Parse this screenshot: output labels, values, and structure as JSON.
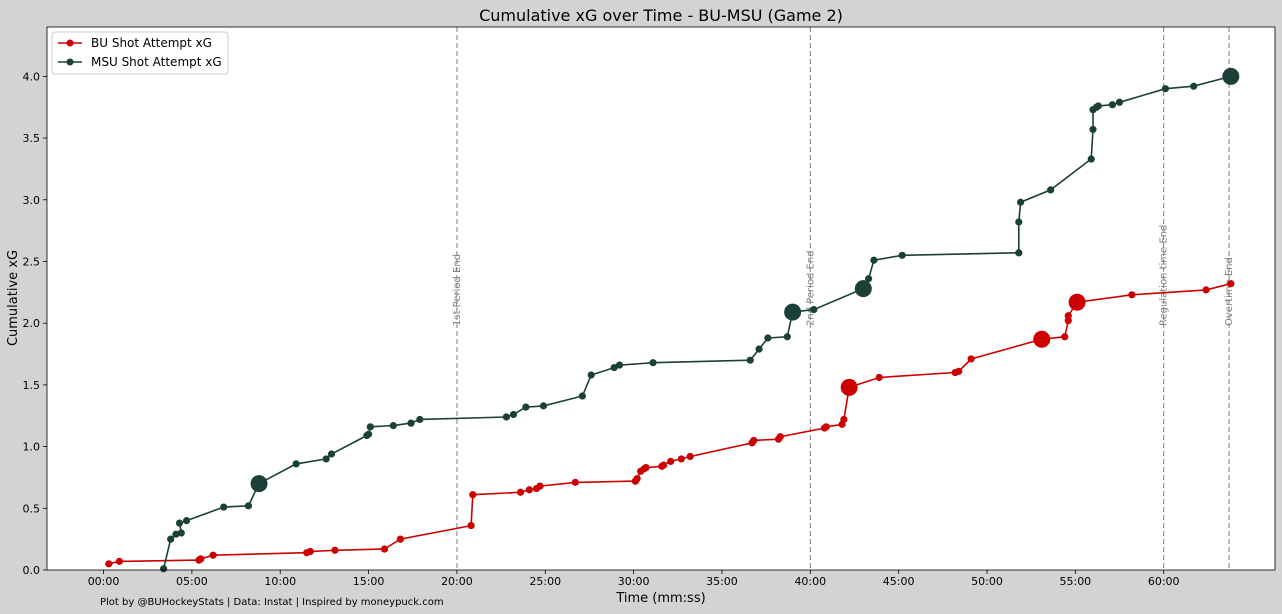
{
  "chart_data": {
    "type": "line",
    "title": "Cumulative xG over Time - BU-MSU (Game 2)",
    "xlabel": "Time (mm:ss)",
    "ylabel": "Cumulative xG",
    "footer": "Plot by @BUHockeyStats | Data: Instat | Inspired by moneypuck.com",
    "xlim": [
      -3.2,
      66.3
    ],
    "ylim": [
      0,
      4.4
    ],
    "x_ticks": [
      0,
      5,
      10,
      15,
      20,
      25,
      30,
      35,
      40,
      45,
      50,
      55,
      60
    ],
    "x_tick_labels": [
      "00:00",
      "05:00",
      "10:00",
      "15:00",
      "20:00",
      "25:00",
      "30:00",
      "35:00",
      "40:00",
      "45:00",
      "50:00",
      "55:00",
      "60:00"
    ],
    "y_ticks": [
      0,
      0.5,
      1.0,
      1.5,
      2.0,
      2.5,
      3.0,
      3.5,
      4.0
    ],
    "y_tick_labels": [
      "0.0",
      "0.5",
      "1.0",
      "1.5",
      "2.0",
      "2.5",
      "3.0",
      "3.5",
      "4.0"
    ],
    "grid": false,
    "legend_position": "top-left",
    "vlines": [
      {
        "x": 20,
        "label": "1st Period End"
      },
      {
        "x": 40,
        "label": "2nd Period End"
      },
      {
        "x": 60,
        "label": "Regulation time End"
      },
      {
        "x": 63.7,
        "label": "Overtime End"
      }
    ],
    "series": [
      {
        "name": "BU Shot Attempt xG",
        "color": "#cc0000",
        "points": [
          [
            0.3,
            0.05
          ],
          [
            0.9,
            0.07
          ],
          [
            5.4,
            0.08
          ],
          [
            5.5,
            0.09
          ],
          [
            6.2,
            0.12
          ],
          [
            11.5,
            0.14
          ],
          [
            11.7,
            0.15
          ],
          [
            13.1,
            0.16
          ],
          [
            15.9,
            0.17
          ],
          [
            16.8,
            0.25
          ],
          [
            20.8,
            0.36
          ],
          [
            20.9,
            0.61
          ],
          [
            23.6,
            0.63
          ],
          [
            24.1,
            0.65
          ],
          [
            24.5,
            0.66
          ],
          [
            24.7,
            0.68
          ],
          [
            26.7,
            0.71
          ],
          [
            30.1,
            0.72
          ],
          [
            30.2,
            0.74
          ],
          [
            30.4,
            0.8
          ],
          [
            30.6,
            0.82
          ],
          [
            30.7,
            0.83
          ],
          [
            31.6,
            0.84
          ],
          [
            31.7,
            0.85
          ],
          [
            32.1,
            0.88
          ],
          [
            32.7,
            0.9
          ],
          [
            33.2,
            0.92
          ],
          [
            36.7,
            1.03
          ],
          [
            36.8,
            1.05
          ],
          [
            38.2,
            1.06
          ],
          [
            38.3,
            1.08
          ],
          [
            40.8,
            1.15
          ],
          [
            40.9,
            1.16
          ],
          [
            41.8,
            1.18
          ],
          [
            41.9,
            1.22
          ],
          [
            42.2,
            1.48
          ],
          [
            43.9,
            1.56
          ],
          [
            48.2,
            1.6
          ],
          [
            48.4,
            1.61
          ],
          [
            49.1,
            1.71
          ],
          [
            53.1,
            1.87
          ],
          [
            54.4,
            1.89
          ],
          [
            54.6,
            2.02
          ],
          [
            54.6,
            2.06
          ],
          [
            55.1,
            2.17
          ],
          [
            58.2,
            2.23
          ],
          [
            62.4,
            2.27
          ],
          [
            63.8,
            2.32
          ]
        ],
        "large_points": [
          [
            42.2,
            1.48
          ],
          [
            53.1,
            1.87
          ],
          [
            55.1,
            2.17
          ]
        ]
      },
      {
        "name": "MSU Shot Attempt xG",
        "color": "#1b4038",
        "points": [
          [
            3.4,
            0.01
          ],
          [
            3.8,
            0.25
          ],
          [
            4.1,
            0.29
          ],
          [
            4.4,
            0.3
          ],
          [
            4.3,
            0.38
          ],
          [
            4.7,
            0.4
          ],
          [
            6.8,
            0.51
          ],
          [
            8.2,
            0.52
          ],
          [
            8.8,
            0.7
          ],
          [
            10.9,
            0.86
          ],
          [
            12.6,
            0.9
          ],
          [
            12.9,
            0.94
          ],
          [
            14.9,
            1.09
          ],
          [
            15.0,
            1.1
          ],
          [
            15.1,
            1.16
          ],
          [
            16.4,
            1.17
          ],
          [
            17.4,
            1.19
          ],
          [
            17.9,
            1.22
          ],
          [
            22.8,
            1.24
          ],
          [
            23.2,
            1.26
          ],
          [
            23.9,
            1.32
          ],
          [
            24.9,
            1.33
          ],
          [
            27.1,
            1.41
          ],
          [
            27.6,
            1.58
          ],
          [
            28.9,
            1.64
          ],
          [
            29.2,
            1.66
          ],
          [
            31.1,
            1.68
          ],
          [
            36.6,
            1.7
          ],
          [
            37.1,
            1.79
          ],
          [
            37.6,
            1.88
          ],
          [
            38.7,
            1.89
          ],
          [
            39.0,
            2.09
          ],
          [
            40.2,
            2.11
          ],
          [
            43.0,
            2.28
          ],
          [
            43.3,
            2.36
          ],
          [
            43.6,
            2.51
          ],
          [
            45.2,
            2.55
          ],
          [
            51.8,
            2.57
          ],
          [
            51.8,
            2.82
          ],
          [
            51.9,
            2.98
          ],
          [
            53.6,
            3.08
          ],
          [
            55.9,
            3.33
          ],
          [
            56.0,
            3.57
          ],
          [
            56.0,
            3.73
          ],
          [
            56.2,
            3.75
          ],
          [
            56.3,
            3.76
          ],
          [
            57.1,
            3.77
          ],
          [
            57.5,
            3.79
          ],
          [
            60.1,
            3.9
          ],
          [
            61.7,
            3.92
          ],
          [
            63.8,
            4.0
          ]
        ],
        "large_points": [
          [
            8.8,
            0.7
          ],
          [
            39.0,
            2.09
          ],
          [
            43.0,
            2.28
          ],
          [
            63.8,
            4.0
          ]
        ]
      }
    ]
  }
}
